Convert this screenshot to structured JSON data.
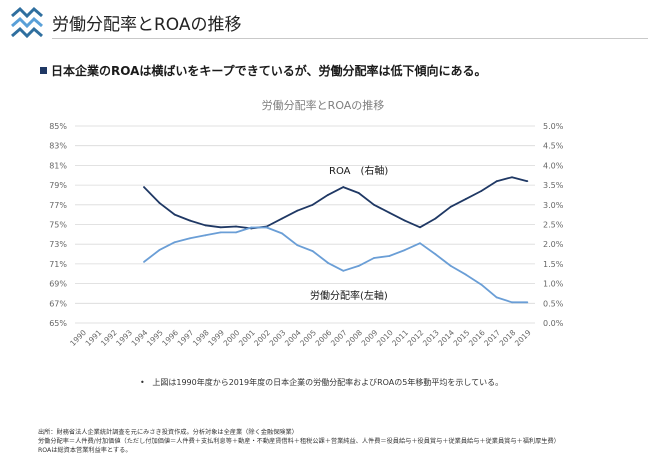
{
  "header": {
    "title": "労働分配率とROAの推移"
  },
  "headline": "日本企業のROAは横ばいをキープできているが、労働分配率は低下傾向にある。",
  "footnote": "上図は1990年度から2019年度の日本企業の労働分配率およびROAの5年移動平均を示している。",
  "source_lines": [
    "出所：財務省法人企業統計調査を元にみさき投資作成。分析対象は全産業（除く金融保険業）",
    "労働分配率＝人件費/付加価値（ただし付加価値＝人件費＋支払利息等＋動産・不動産賃借料＋租税公課＋営業純益、人件費＝役員給与＋役員賞与＋従業員給与＋従業員賞与＋福利厚生費）",
    "ROAは総資本営業利益率とする。"
  ],
  "colors": {
    "roa": "#1f3864",
    "labor": "#6a9ed6",
    "grid": "#d9d9d9",
    "axis_text": "#666666",
    "logo": "#2f6f9f"
  },
  "chart_data": {
    "type": "line",
    "title": "労働分配率とROAの推移",
    "categories": [
      "1990",
      "1991",
      "1992",
      "1993",
      "1994",
      "1995",
      "1996",
      "1997",
      "1998",
      "1999",
      "2000",
      "2001",
      "2002",
      "2003",
      "2004",
      "2005",
      "2006",
      "2007",
      "2008",
      "2009",
      "2010",
      "2011",
      "2012",
      "2013",
      "2014",
      "2015",
      "2016",
      "2017",
      "2018",
      "2019"
    ],
    "left_axis": {
      "ticks": [
        "85%",
        "83%",
        "81%",
        "79%",
        "77%",
        "75%",
        "73%",
        "71%",
        "69%",
        "67%",
        "65%"
      ],
      "ylim": [
        65,
        85
      ]
    },
    "right_axis": {
      "ticks": [
        "5.0%",
        "4.5%",
        "4.0%",
        "3.5%",
        "3.0%",
        "2.5%",
        "2.0%",
        "1.5%",
        "1.0%",
        "0.5%",
        "0.0%"
      ],
      "ylim": [
        0,
        5
      ]
    },
    "series": [
      {
        "name": "ROA　(右軸)",
        "axis": "right",
        "values": [
          null,
          null,
          null,
          null,
          3.45,
          3.05,
          2.75,
          2.6,
          2.48,
          2.43,
          2.45,
          2.4,
          2.45,
          2.65,
          2.85,
          3.0,
          3.25,
          3.45,
          3.3,
          3.0,
          2.8,
          2.6,
          2.43,
          2.65,
          2.95,
          3.15,
          3.35,
          3.6,
          3.7,
          3.6
        ]
      },
      {
        "name": "労働分配率(左軸)",
        "axis": "left",
        "values": [
          null,
          null,
          null,
          null,
          71.2,
          72.4,
          73.2,
          73.6,
          73.9,
          74.2,
          74.2,
          74.7,
          74.7,
          74.1,
          72.9,
          72.3,
          71.1,
          70.3,
          70.8,
          71.6,
          71.8,
          72.4,
          73.1,
          72.0,
          70.8,
          69.9,
          68.9,
          67.6,
          67.1,
          67.1
        ]
      }
    ],
    "grid": true,
    "legend": "inline-labels"
  }
}
